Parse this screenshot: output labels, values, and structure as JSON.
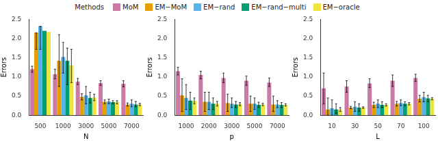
{
  "chart_data": [
    {
      "type": "bar",
      "x_label": "N",
      "y_label": "Errors",
      "legend": "top",
      "legend_title": "Methods",
      "grid": false,
      "categories": [
        "500",
        "1000",
        "3000",
        "5000",
        "7000"
      ],
      "ylim": [
        0,
        2.5
      ],
      "yticks": [
        {
          "value": 0,
          "label": "0.0"
        },
        {
          "value": 0.5,
          "label": "0.5"
        },
        {
          "value": 1,
          "label": "1.0"
        },
        {
          "value": 1.5,
          "label": "1.5"
        },
        {
          "value": 2,
          "label": "2.0"
        },
        {
          "value": 2.5,
          "label": "2.5"
        }
      ],
      "series": [
        {
          "name": "MoM",
          "color": "#CC79A7",
          "values": [
            1.2,
            1.07,
            0.88,
            0.84,
            0.82
          ],
          "error_low": [
            1.12,
            0.95,
            0.8,
            0.78,
            0.74
          ],
          "error_high": [
            1.28,
            1.2,
            0.96,
            0.9,
            0.9
          ]
        },
        {
          "name": "EM−MoM",
          "color": "#E69F00",
          "values": [
            2.15,
            1.42,
            0.48,
            0.35,
            0.28
          ],
          "error_low": [
            1.72,
            0.75,
            0.4,
            0.3,
            0.24
          ],
          "error_high": [
            2.15,
            2.1,
            0.56,
            0.4,
            0.32
          ]
        },
        {
          "name": "EM−rand",
          "color": "#56B4E9",
          "values": [
            2.32,
            1.52,
            0.52,
            0.36,
            0.3
          ],
          "error_low": [
            1.72,
            1.1,
            0.3,
            0.3,
            0.22
          ],
          "error_high": [
            2.32,
            1.9,
            0.75,
            0.42,
            0.4
          ]
        },
        {
          "name": "EM−rand−multi",
          "color": "#009E73",
          "values": [
            2.2,
            1.42,
            0.45,
            0.34,
            0.28
          ],
          "error_low": [
            null,
            0.8,
            0.32,
            0.3,
            0.22
          ],
          "error_high": [
            null,
            1.75,
            0.6,
            0.38,
            0.36
          ]
        },
        {
          "name": "EM−oracle",
          "color": "#F0E442",
          "values": [
            2.17,
            1.3,
            0.46,
            0.34,
            0.28
          ],
          "error_low": [
            null,
            0.85,
            0.38,
            0.3,
            0.25
          ],
          "error_high": [
            null,
            1.72,
            0.55,
            0.38,
            0.31
          ]
        }
      ]
    },
    {
      "type": "bar",
      "x_label": "p",
      "y_label": "Errors",
      "grid": false,
      "categories": [
        "1000",
        "2000",
        "3000",
        "5000",
        "7000"
      ],
      "ylim": [
        0,
        2.5
      ],
      "yticks": [
        {
          "value": 0,
          "label": "0.0"
        },
        {
          "value": 0.5,
          "label": "0.5"
        },
        {
          "value": 1,
          "label": "1.0"
        },
        {
          "value": 1.5,
          "label": "1.5"
        },
        {
          "value": 2,
          "label": "2.0"
        },
        {
          "value": 2.5,
          "label": "2.5"
        }
      ],
      "series": [
        {
          "name": "MoM",
          "color": "#CC79A7",
          "values": [
            1.15,
            1.05,
            0.97,
            0.9,
            0.85
          ],
          "error_low": [
            1.05,
            0.95,
            0.85,
            0.78,
            0.75
          ],
          "error_high": [
            1.25,
            1.15,
            1.1,
            1.02,
            0.97
          ]
        },
        {
          "name": "EM−MoM",
          "color": "#E69F00",
          "values": [
            0.52,
            0.35,
            0.32,
            0.3,
            0.28
          ],
          "error_low": [
            0.1,
            0.1,
            0.1,
            0.1,
            0.1
          ],
          "error_high": [
            0.95,
            0.6,
            0.55,
            0.5,
            0.5
          ]
        },
        {
          "name": "EM−rand",
          "color": "#56B4E9",
          "values": [
            0.45,
            0.35,
            0.3,
            0.3,
            0.28
          ],
          "error_low": [
            0.15,
            0.15,
            0.2,
            0.15,
            0.2
          ],
          "error_high": [
            0.8,
            0.6,
            0.45,
            0.45,
            0.38
          ]
        },
        {
          "name": "EM−rand−multi",
          "color": "#009E73",
          "values": [
            0.38,
            0.3,
            0.28,
            0.27,
            0.27
          ],
          "error_low": [
            0.15,
            0.15,
            0.2,
            0.2,
            0.2
          ],
          "error_high": [
            0.6,
            0.45,
            0.36,
            0.34,
            0.33
          ]
        },
        {
          "name": "EM−oracle",
          "color": "#F0E442",
          "values": [
            0.37,
            0.3,
            0.29,
            0.28,
            0.27
          ],
          "error_low": [
            0.3,
            0.24,
            0.25,
            0.25,
            0.24
          ],
          "error_high": [
            0.45,
            0.36,
            0.33,
            0.31,
            0.3
          ]
        }
      ]
    },
    {
      "type": "bar",
      "x_label": "L",
      "y_label": "Errors",
      "grid": false,
      "categories": [
        "10",
        "30",
        "50",
        "70",
        "100"
      ],
      "ylim": [
        0,
        2.5
      ],
      "yticks": [
        {
          "value": 0,
          "label": "0.0"
        },
        {
          "value": 0.5,
          "label": "0.5"
        },
        {
          "value": 1,
          "label": "1.0"
        },
        {
          "value": 1.5,
          "label": "1.5"
        },
        {
          "value": 2,
          "label": "2.0"
        },
        {
          "value": 2.5,
          "label": "2.5"
        }
      ],
      "series": [
        {
          "name": "MoM",
          "color": "#CC79A7",
          "values": [
            0.7,
            0.75,
            0.83,
            0.9,
            0.97
          ],
          "error_low": [
            0.3,
            0.6,
            0.72,
            0.75,
            0.88
          ],
          "error_high": [
            1.1,
            0.9,
            0.95,
            1.05,
            1.07
          ]
        },
        {
          "name": "EM−MoM",
          "color": "#E69F00",
          "values": [
            0.15,
            0.2,
            0.27,
            0.3,
            0.43
          ],
          "error_low": [
            0,
            0.17,
            0.2,
            0.24,
            0.35
          ],
          "error_high": [
            0.45,
            0.23,
            0.34,
            0.36,
            0.52
          ]
        },
        {
          "name": "EM−rand",
          "color": "#56B4E9",
          "values": [
            0.18,
            0.22,
            0.3,
            0.32,
            0.47
          ],
          "error_low": [
            0,
            0.1,
            0.2,
            0.25,
            0.35
          ],
          "error_high": [
            0.4,
            0.35,
            0.4,
            0.4,
            0.6
          ]
        },
        {
          "name": "EM−rand−multi",
          "color": "#009E73",
          "values": [
            0.15,
            0.2,
            0.27,
            0.3,
            0.44
          ],
          "error_low": [
            0.05,
            0.1,
            0.2,
            0.25,
            0.35
          ],
          "error_high": [
            0.3,
            0.3,
            0.35,
            0.35,
            0.52
          ]
        },
        {
          "name": "EM−oracle",
          "color": "#F0E442",
          "values": [
            0.15,
            0.2,
            0.27,
            0.3,
            0.43
          ],
          "error_low": [
            0.1,
            0.18,
            0.24,
            0.27,
            0.4
          ],
          "error_high": [
            0.2,
            0.22,
            0.3,
            0.33,
            0.46
          ]
        }
      ]
    }
  ]
}
